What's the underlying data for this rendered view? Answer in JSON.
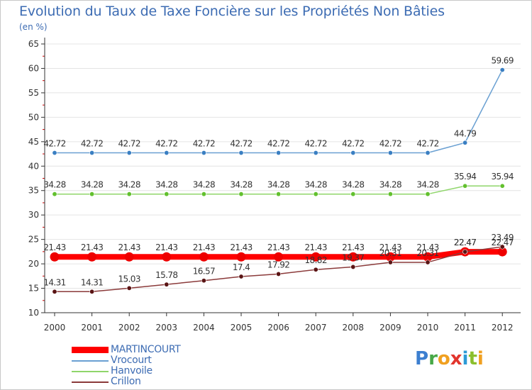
{
  "title": "Evolution du Taux de Taxe Foncière sur les Propriétés Non Bâties",
  "unit_label": "(en %)",
  "logo_text": "Proxiti",
  "colors": {
    "title": "#3d6cb3",
    "axis": "#333333",
    "grid": "#e4e4e4",
    "tick_red": "#d00000"
  },
  "chart_data": {
    "type": "line",
    "title": "Evolution du Taux de Taxe Foncière sur les Propriétés Non Bâties",
    "ylabel": "(en %)",
    "xlabel": "",
    "x": [
      "2000",
      "2001",
      "2002",
      "2003",
      "2004",
      "2005",
      "2006",
      "2007",
      "2008",
      "2009",
      "2010",
      "2011",
      "2012"
    ],
    "ylim": [
      10,
      65
    ],
    "yticks": [
      10,
      15,
      20,
      25,
      30,
      35,
      40,
      45,
      50,
      55,
      60,
      65
    ],
    "series": [
      {
        "name": "Vrocourt",
        "color": "#6aa0d2",
        "marker_color": "#3a7fc2",
        "values": [
          42.72,
          42.72,
          42.72,
          42.72,
          42.72,
          42.72,
          42.72,
          42.72,
          42.72,
          42.72,
          42.72,
          44.79,
          59.69
        ],
        "labels": [
          "42.72",
          "42.72",
          "42.72",
          "42.72",
          "42.72",
          "42.72",
          "42.72",
          "42.72",
          "42.72",
          "42.72",
          "42.72",
          "44.79",
          "59.69"
        ]
      },
      {
        "name": "Hanvoile",
        "color": "#8fd66a",
        "marker_color": "#62c02e",
        "values": [
          34.28,
          34.28,
          34.28,
          34.28,
          34.28,
          34.28,
          34.28,
          34.28,
          34.28,
          34.28,
          34.28,
          35.94,
          35.94
        ],
        "labels": [
          "34.28",
          "34.28",
          "34.28",
          "34.28",
          "34.28",
          "34.28",
          "34.28",
          "34.28",
          "34.28",
          "34.28",
          "34.28",
          "35.94",
          "35.94"
        ]
      },
      {
        "name": "MARTINCOURT",
        "color": "#ff0000",
        "marker_color": "#ee0000",
        "values": [
          21.43,
          21.43,
          21.43,
          21.43,
          21.43,
          21.43,
          21.43,
          21.43,
          21.43,
          21.43,
          21.43,
          22.47,
          22.47
        ],
        "labels": [
          "21.43",
          "21.43",
          "21.43",
          "21.43",
          "21.43",
          "21.43",
          "21.43",
          "21.43",
          "21.43",
          "21.43",
          "21.43",
          "22.47",
          "22.47"
        ]
      },
      {
        "name": "Crillon",
        "color": "#8b3a3a",
        "marker_color": "#5a1414",
        "values": [
          14.31,
          14.31,
          15.03,
          15.78,
          16.57,
          17.4,
          17.92,
          18.82,
          19.37,
          20.31,
          20.31,
          22.47,
          23.49
        ],
        "labels": [
          "14.31",
          "14.31",
          "15.03",
          "15.78",
          "16.57",
          "17.4",
          "17.92",
          "18.82",
          "19.37",
          "20.31",
          "20.31",
          "22.47",
          "23.49"
        ]
      }
    ],
    "legend": [
      "MARTINCOURT",
      "Vrocourt",
      "Hanvoile",
      "Crillon"
    ],
    "legend_position": "bottom-left",
    "grid": true
  }
}
